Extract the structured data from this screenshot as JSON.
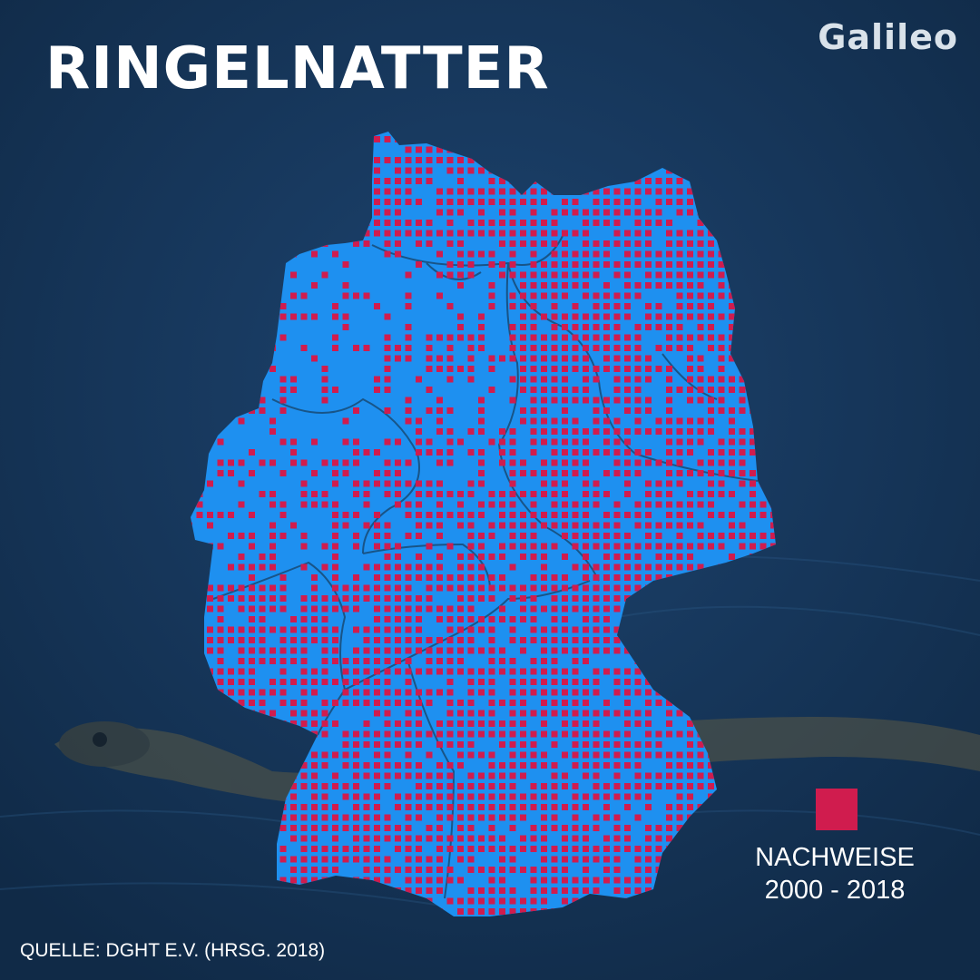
{
  "title": "RINGELNATTER",
  "brand": "Galileo",
  "legend": {
    "line1": "NACHWEISE",
    "line2": "2000 - 2018"
  },
  "source": "QUELLE: DGHT E.V. (HRSG. 2018)",
  "colors": {
    "background": "#173a5e",
    "land": "#1e90f0",
    "marker": "#d01c4e",
    "text": "#ffffff"
  },
  "icons": [
    "snake-silhouette"
  ]
}
